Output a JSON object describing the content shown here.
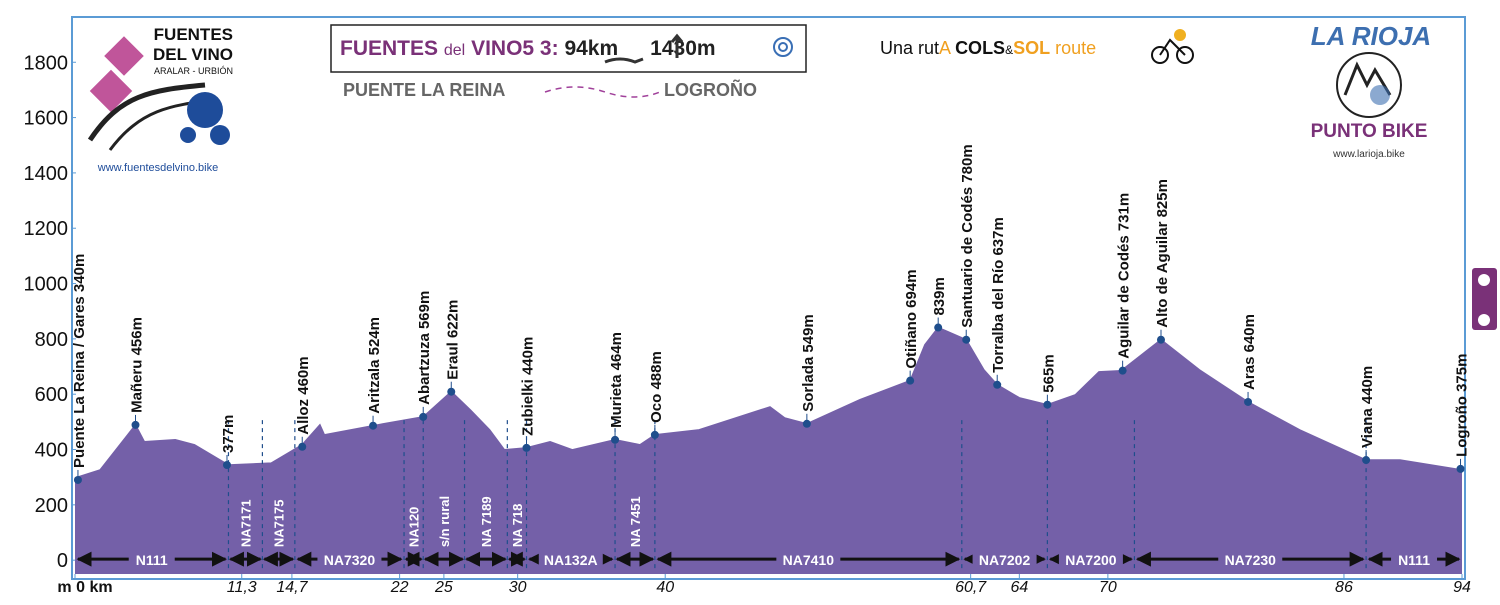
{
  "header": {
    "logo_left": {
      "line1": "FUENTES",
      "line2": "DEL VINO",
      "line3": "ARALAR - URBIÓN",
      "url": "www.fuentesdelvino.bike"
    },
    "title_parts": [
      "FUENTES",
      "del",
      "VINO5 3:",
      "94km",
      "1430m"
    ],
    "route_from": "PUENTE LA REINA",
    "route_to": "LOGROÑO",
    "tagline_parts": [
      "Una rut",
      "A",
      "COLS",
      "&",
      "SOL",
      "route"
    ],
    "logo_right": {
      "title": "LA RIOJA",
      "name": "PUNTO BIKE",
      "url": "www.larioja.bike"
    }
  },
  "chart_data": {
    "type": "area",
    "color": "#7460a8",
    "marker_color": "#1f4e8c",
    "x": [
      0,
      1.7,
      4.1,
      4.7,
      6.8,
      8.1,
      10.4,
      13.3,
      15.4,
      16.6,
      16.9,
      20.2,
      23.6,
      25.5,
      26.8,
      28.1,
      29.1,
      30.6,
      32.2,
      33.7,
      36.6,
      38.3,
      39.3,
      42.3,
      47.1,
      48.1,
      49.6,
      53.2,
      56.6,
      57.6,
      58.5,
      60.4,
      61.6,
      62.5,
      64.0,
      65.9,
      67.8,
      69.4,
      70.9,
      73.6,
      76.2,
      79.5,
      83.0,
      87.5,
      89.8,
      94
    ],
    "values": [
      297,
      326,
      489,
      428,
      435,
      417,
      344,
      351,
      417,
      489,
      453,
      486,
      518,
      609,
      543,
      471,
      399,
      406,
      428,
      399,
      435,
      417,
      453,
      471,
      554,
      514,
      493,
      580,
      649,
      779,
      841,
      797,
      688,
      634,
      587,
      562,
      598,
      681,
      685,
      797,
      688,
      572,
      471,
      362,
      362,
      326
    ],
    "xlim": [
      0,
      94
    ],
    "ylim": [
      -50,
      1960
    ],
    "yticks": [
      0,
      200,
      400,
      600,
      800,
      1000,
      1200,
      1400,
      1600,
      1800
    ],
    "xticks": [
      {
        "value": 0,
        "label": "m 0 km"
      },
      {
        "value": 11.3,
        "label": "11,3"
      },
      {
        "value": 14.7,
        "label": "14,7"
      },
      22,
      25,
      30,
      40,
      {
        "value": 60.7,
        "label": "60,7"
      },
      64,
      70,
      86,
      94
    ],
    "waypoints": [
      {
        "label": "Puente La Reina / Gares 340m",
        "x": 0.2,
        "y": 290
      },
      {
        "label": "Mañeru 456m",
        "x": 4.1,
        "y": 489
      },
      {
        "label": "377m",
        "x": 10.3,
        "y": 344
      },
      {
        "label": "Alloz 460m",
        "x": 15.4,
        "y": 410
      },
      {
        "label": "Aritzala 524m",
        "x": 20.2,
        "y": 486
      },
      {
        "label": "Abartzuza 569m",
        "x": 23.6,
        "y": 518
      },
      {
        "label": "Eraul 622m",
        "x": 25.5,
        "y": 609
      },
      {
        "label": "Zubielki 440m",
        "x": 30.6,
        "y": 406
      },
      {
        "label": "Murieta 464m",
        "x": 36.6,
        "y": 435
      },
      {
        "label": "Oco 488m",
        "x": 39.3,
        "y": 453
      },
      {
        "label": "Sorlada 549m",
        "x": 49.6,
        "y": 493
      },
      {
        "label": "Otiñano 694m",
        "x": 56.6,
        "y": 649
      },
      {
        "label": "839m",
        "x": 58.5,
        "y": 841
      },
      {
        "label": "Santuario de Codés 780m",
        "x": 60.4,
        "y": 797
      },
      {
        "label": "Torralba del Río 637m",
        "x": 62.5,
        "y": 634
      },
      {
        "label": "565m",
        "x": 65.9,
        "y": 562
      },
      {
        "label": "Aguilar de Codés 731m",
        "x": 71.0,
        "y": 685
      },
      {
        "label": "Alto de Aguilar 825m",
        "x": 73.6,
        "y": 797
      },
      {
        "label": "Aras 640m",
        "x": 79.5,
        "y": 572
      },
      {
        "label": "Viana 440m",
        "x": 87.5,
        "y": 362
      },
      {
        "label": "Logroño 375m",
        "x": 93.9,
        "y": 330
      }
    ],
    "roads": [
      {
        "name": "N111",
        "start": 0,
        "end": 10.4
      },
      {
        "name": "NA7171",
        "start": 10.4,
        "end": 12.7
      },
      {
        "name": "NA7175",
        "start": 12.7,
        "end": 14.9
      },
      {
        "name": "NA7320",
        "start": 14.9,
        "end": 22.3
      },
      {
        "name": "NA120",
        "start": 22.3,
        "end": 23.6
      },
      {
        "name": "s/n rural",
        "start": 23.6,
        "end": 26.4
      },
      {
        "name": "NA 7189",
        "start": 26.4,
        "end": 29.3
      },
      {
        "name": "NA 718",
        "start": 29.3,
        "end": 30.6
      },
      {
        "name": "NA132A",
        "start": 30.6,
        "end": 36.6
      },
      {
        "name": "NA 7451",
        "start": 36.6,
        "end": 39.3
      },
      {
        "name": "NA7410",
        "start": 39.3,
        "end": 60.1
      },
      {
        "name": "NA7202",
        "start": 60.1,
        "end": 65.9
      },
      {
        "name": "NA7200",
        "start": 65.9,
        "end": 71.8
      },
      {
        "name": "NA7230",
        "start": 71.8,
        "end": 87.5
      },
      {
        "name": "N111",
        "start": 87.5,
        "end": 94
      }
    ]
  }
}
